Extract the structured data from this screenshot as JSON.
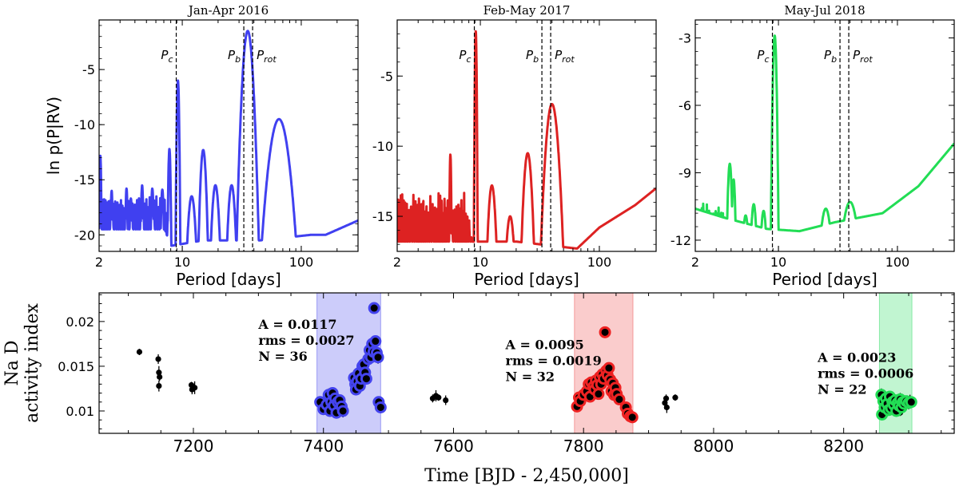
{
  "chart_data": [
    {
      "type": "line",
      "title": "Jan-Apr 2016",
      "xlabel": "Period [days]",
      "ylabel": "ln p(P|RV)",
      "xscale": "log",
      "xlim": [
        2,
        300
      ],
      "ylim": [
        -21.5,
        -0.5
      ],
      "xticks": [
        {
          "v": 2,
          "label": "2"
        },
        {
          "v": 10,
          "label": "10"
        },
        {
          "v": 100,
          "label": "100"
        }
      ],
      "yticks": [
        {
          "v": -5,
          "label": "-5"
        },
        {
          "v": -10,
          "label": "-10"
        },
        {
          "v": -15,
          "label": "-15"
        },
        {
          "v": -20,
          "label": "-20"
        }
      ],
      "color": "#4040f0",
      "noise_range": [
        2,
        8
      ],
      "noise_level": [
        -19.5,
        -16.5
      ],
      "noise_seed": 11,
      "peaks": [
        {
          "p": 2.05,
          "h": -12.8,
          "w": 0.008
        },
        {
          "p": 2.55,
          "h": -16.0,
          "w": 0.008
        },
        {
          "p": 3.4,
          "h": -15.8,
          "w": 0.009
        },
        {
          "p": 3.7,
          "h": -16.7,
          "w": 0.009
        },
        {
          "p": 4.6,
          "h": -15.5,
          "w": 0.01
        },
        {
          "p": 5.6,
          "h": -15.8,
          "w": 0.011
        },
        {
          "p": 6.8,
          "h": -15.9,
          "w": 0.012
        },
        {
          "p": 7.8,
          "h": -12.2,
          "w": 0.012
        },
        {
          "p": 9.2,
          "h": -6.0,
          "w": 0.015
        },
        {
          "p": 12.0,
          "h": -16.5,
          "w": 0.03
        },
        {
          "p": 15.0,
          "h": -12.3,
          "w": 0.03
        },
        {
          "p": 19.0,
          "h": -15.5,
          "w": 0.03
        },
        {
          "p": 26.0,
          "h": -15.5,
          "w": 0.03
        },
        {
          "p": 35.5,
          "h": -1.5,
          "w": 0.07
        },
        {
          "p": 65.0,
          "h": -9.5,
          "w": 0.11
        }
      ],
      "baseline": [
        [
          2,
          -21.0
        ],
        [
          8,
          -21.0
        ],
        [
          15,
          -20.5
        ],
        [
          45,
          -20.5
        ],
        [
          120,
          -20.0
        ],
        [
          160,
          -20.0
        ],
        [
          300,
          -18.7
        ]
      ],
      "vlines": [
        {
          "x": 8.9,
          "label_main": "P",
          "label_sub": "c",
          "anchor": "end"
        },
        {
          "x": 32.9,
          "label_main": "P",
          "label_sub": "b",
          "anchor": "end"
        },
        {
          "x": 39.0,
          "label_main": "P",
          "label_sub": "rot",
          "anchor": "start"
        }
      ]
    },
    {
      "type": "line",
      "title": "Feb-May 2017",
      "xlabel": "Period [days]",
      "ylabel": "",
      "xscale": "log",
      "xlim": [
        2,
        300
      ],
      "ylim": [
        -17.5,
        -1.0
      ],
      "xticks": [
        {
          "v": 2,
          "label": "2"
        },
        {
          "v": 10,
          "label": "10"
        },
        {
          "v": 100,
          "label": "100"
        }
      ],
      "yticks": [
        {
          "v": -5,
          "label": "-5"
        },
        {
          "v": -10,
          "label": "-10"
        },
        {
          "v": -15,
          "label": "-15"
        }
      ],
      "color": "#dd2222",
      "noise_range": [
        2,
        8.5
      ],
      "noise_level": [
        -16.8,
        -13.2
      ],
      "noise_seed": 23,
      "peaks": [
        {
          "p": 5.6,
          "h": -10.6,
          "w": 0.008
        },
        {
          "p": 9.15,
          "h": -1.8,
          "w": 0.012
        },
        {
          "p": 12.5,
          "h": -12.8,
          "w": 0.03
        },
        {
          "p": 17.8,
          "h": -15.0,
          "w": 0.025
        },
        {
          "p": 25.0,
          "h": -10.5,
          "w": 0.04
        },
        {
          "p": 40.0,
          "h": -7.0,
          "w": 0.07
        }
      ],
      "baseline": [
        [
          2,
          -16.8
        ],
        [
          9,
          -16.8
        ],
        [
          20,
          -16.8
        ],
        [
          65,
          -17.3
        ],
        [
          100,
          -15.8
        ],
        [
          200,
          -14.2
        ],
        [
          300,
          -13.0
        ]
      ],
      "vlines": [
        {
          "x": 8.9,
          "label_main": "P",
          "label_sub": "c",
          "anchor": "end"
        },
        {
          "x": 32.9,
          "label_main": "P",
          "label_sub": "b",
          "anchor": "end"
        },
        {
          "x": 39.0,
          "label_main": "P",
          "label_sub": "rot",
          "anchor": "start"
        }
      ]
    },
    {
      "type": "line",
      "title": "May-Jul 2018",
      "xlabel": "Period [days]",
      "ylabel": "",
      "xscale": "log",
      "xlim": [
        2,
        300
      ],
      "ylim": [
        -12.5,
        -2.2
      ],
      "xticks": [
        {
          "v": 2,
          "label": "2"
        },
        {
          "v": 10,
          "label": "10"
        },
        {
          "v": 100,
          "label": "100"
        }
      ],
      "yticks": [
        {
          "v": -3,
          "label": "-3"
        },
        {
          "v": -6,
          "label": "-6"
        },
        {
          "v": -9,
          "label": "-9"
        },
        {
          "v": -12,
          "label": "-12"
        }
      ],
      "color": "#22dd55",
      "noise_range": [
        2,
        3.6
      ],
      "noise_level": [
        -11.8,
        -10.3
      ],
      "noise_seed": 37,
      "peaks": [
        {
          "p": 3.9,
          "h": -8.6,
          "w": 0.02
        },
        {
          "p": 4.2,
          "h": -9.3,
          "w": 0.015
        },
        {
          "p": 5.3,
          "h": -10.9,
          "w": 0.02
        },
        {
          "p": 6.2,
          "h": -10.4,
          "w": 0.02
        },
        {
          "p": 7.5,
          "h": -10.7,
          "w": 0.02
        },
        {
          "p": 9.3,
          "h": -2.9,
          "w": 0.025
        },
        {
          "p": 25.0,
          "h": -10.6,
          "w": 0.04
        },
        {
          "p": 40.0,
          "h": -10.3,
          "w": 0.06
        }
      ],
      "baseline": [
        [
          2,
          -10.6
        ],
        [
          3.5,
          -11.0
        ],
        [
          8,
          -11.5
        ],
        [
          15,
          -11.6
        ],
        [
          30,
          -11.2
        ],
        [
          75,
          -10.8
        ],
        [
          150,
          -9.6
        ],
        [
          300,
          -7.7
        ]
      ],
      "vlines": [
        {
          "x": 8.9,
          "label_main": "P",
          "label_sub": "c",
          "anchor": "end"
        },
        {
          "x": 32.9,
          "label_main": "P",
          "label_sub": "b",
          "anchor": "end"
        },
        {
          "x": 39.0,
          "label_main": "P",
          "label_sub": "rot",
          "anchor": "start"
        }
      ]
    },
    {
      "type": "scatter",
      "title": "",
      "xlabel": "Time [BJD - 2,450,000]",
      "ylabel_lines": [
        "Na D",
        "activity index"
      ],
      "xlim": [
        7055,
        8370
      ],
      "ylim": [
        0.0075,
        0.0232
      ],
      "xticks": [
        {
          "v": 7200,
          "label": "7200"
        },
        {
          "v": 7400,
          "label": "7400"
        },
        {
          "v": 7600,
          "label": "7600"
        },
        {
          "v": 7800,
          "label": "7800"
        },
        {
          "v": 8000,
          "label": "8000"
        },
        {
          "v": 8200,
          "label": "8200"
        }
      ],
      "yticks": [
        {
          "v": 0.01,
          "label": "0.01"
        },
        {
          "v": 0.015,
          "label": "0.015"
        },
        {
          "v": 0.02,
          "label": "0.02"
        }
      ],
      "bands": [
        {
          "x0": 7390,
          "x1": 7488,
          "color": "#5555ee"
        },
        {
          "x0": 7786,
          "x1": 7876,
          "color": "#ee5555"
        },
        {
          "x0": 8255,
          "x1": 8305,
          "color": "#33dd66"
        }
      ],
      "stats": [
        {
          "x": 7300,
          "y": 0.0192,
          "lines": [
            "A = 0.0117",
            "rms = 0.0027",
            "N = 36"
          ]
        },
        {
          "x": 7680,
          "y": 0.0169,
          "lines": [
            "A = 0.0095",
            "rms = 0.0019",
            "N = 32"
          ]
        },
        {
          "x": 8160,
          "y": 0.0155,
          "lines": [
            "A = 0.0023",
            "rms = 0.0006",
            "N = 22"
          ]
        }
      ],
      "series": [
        {
          "name": "other",
          "ring": null,
          "points": [
            [
              7117,
              0.0166
            ],
            [
              7146,
              0.0158
            ],
            [
              7147,
              0.0143
            ],
            [
              7148,
              0.0138
            ],
            [
              7147,
              0.0128
            ],
            [
              7197,
              0.0129
            ],
            [
              7198,
              0.0124
            ],
            [
              7202,
              0.0126
            ],
            [
              7568,
              0.0114
            ],
            [
              7573,
              0.0117
            ],
            [
              7577,
              0.0115
            ],
            [
              7588,
              0.0112
            ],
            [
              7925,
              0.0109
            ],
            [
              7927,
              0.0114
            ],
            [
              7928,
              0.0104
            ],
            [
              7941,
              0.0115
            ],
            [
              8262,
              0.0104
            ],
            [
              8271,
              0.0108
            ],
            [
              8278,
              0.0102
            ],
            [
              8282,
              0.0112
            ],
            [
              8287,
              0.0098
            ],
            [
              8295,
              0.0106
            ],
            [
              8302,
              0.0111
            ]
          ]
        },
        {
          "name": "Jan-Apr 2016",
          "ring": "#4444ee",
          "points": [
            [
              7395,
              0.011
            ],
            [
              7400,
              0.0102
            ],
            [
              7405,
              0.0107
            ],
            [
              7408,
              0.0118
            ],
            [
              7410,
              0.01
            ],
            [
              7412,
              0.011
            ],
            [
              7414,
              0.012
            ],
            [
              7416,
              0.0106
            ],
            [
              7418,
              0.0114
            ],
            [
              7420,
              0.0098
            ],
            [
              7422,
              0.011
            ],
            [
              7425,
              0.0112
            ],
            [
              7428,
              0.0105
            ],
            [
              7430,
              0.01
            ],
            [
              7447,
              0.0137
            ],
            [
              7449,
              0.013
            ],
            [
              7450,
              0.0124
            ],
            [
              7452,
              0.0133
            ],
            [
              7454,
              0.0142
            ],
            [
              7456,
              0.0128
            ],
            [
              7458,
              0.0136
            ],
            [
              7460,
              0.015
            ],
            [
              7462,
              0.0152
            ],
            [
              7464,
              0.0143
            ],
            [
              7466,
              0.0136
            ],
            [
              7469,
              0.0158
            ],
            [
              7471,
              0.0168
            ],
            [
              7473,
              0.016
            ],
            [
              7475,
              0.0175
            ],
            [
              7477,
              0.0166
            ],
            [
              7478,
              0.0215
            ],
            [
              7480,
              0.0178
            ],
            [
              7482,
              0.0165
            ],
            [
              7484,
              0.016
            ],
            [
              7485,
              0.011
            ],
            [
              7488,
              0.0104
            ]
          ]
        },
        {
          "name": "Feb-May 2017",
          "ring": "#ee2222",
          "points": [
            [
              7790,
              0.0105
            ],
            [
              7793,
              0.0115
            ],
            [
              7795,
              0.0111
            ],
            [
              7800,
              0.0118
            ],
            [
              7805,
              0.0122
            ],
            [
              7808,
              0.013
            ],
            [
              7810,
              0.0116
            ],
            [
              7812,
              0.0132
            ],
            [
              7815,
              0.0127
            ],
            [
              7817,
              0.0124
            ],
            [
              7819,
              0.0134
            ],
            [
              7821,
              0.0129
            ],
            [
              7823,
              0.0119
            ],
            [
              7825,
              0.0138
            ],
            [
              7827,
              0.013
            ],
            [
              7829,
              0.0141
            ],
            [
              7831,
              0.0136
            ],
            [
              7833,
              0.0188
            ],
            [
              7835,
              0.0145
            ],
            [
              7837,
              0.014
            ],
            [
              7839,
              0.0148
            ],
            [
              7841,
              0.0135
            ],
            [
              7843,
              0.0122
            ],
            [
              7845,
              0.0131
            ],
            [
              7847,
              0.0118
            ],
            [
              7849,
              0.0126
            ],
            [
              7851,
              0.0119
            ],
            [
              7855,
              0.0113
            ],
            [
              7865,
              0.0104
            ],
            [
              7868,
              0.0097
            ],
            [
              7872,
              0.0094
            ],
            [
              7875,
              0.0093
            ]
          ]
        },
        {
          "name": "May-Jul 2018",
          "ring": "#22dd55",
          "points": [
            [
              8258,
              0.0118
            ],
            [
              8259,
              0.0096
            ],
            [
              8261,
              0.0111
            ],
            [
              8263,
              0.0104
            ],
            [
              8265,
              0.0114
            ],
            [
              8267,
              0.0108
            ],
            [
              8269,
              0.0101
            ],
            [
              8271,
              0.0116
            ],
            [
              8273,
              0.0103
            ],
            [
              8275,
              0.011
            ],
            [
              8277,
              0.0107
            ],
            [
              8279,
              0.0112
            ],
            [
              8281,
              0.01
            ],
            [
              8283,
              0.0109
            ],
            [
              8285,
              0.0106
            ],
            [
              8287,
              0.0113
            ],
            [
              8289,
              0.0104
            ],
            [
              8291,
              0.011
            ],
            [
              8293,
              0.0108
            ],
            [
              8296,
              0.0111
            ],
            [
              8300,
              0.0109
            ],
            [
              8304,
              0.011
            ]
          ]
        }
      ]
    }
  ]
}
